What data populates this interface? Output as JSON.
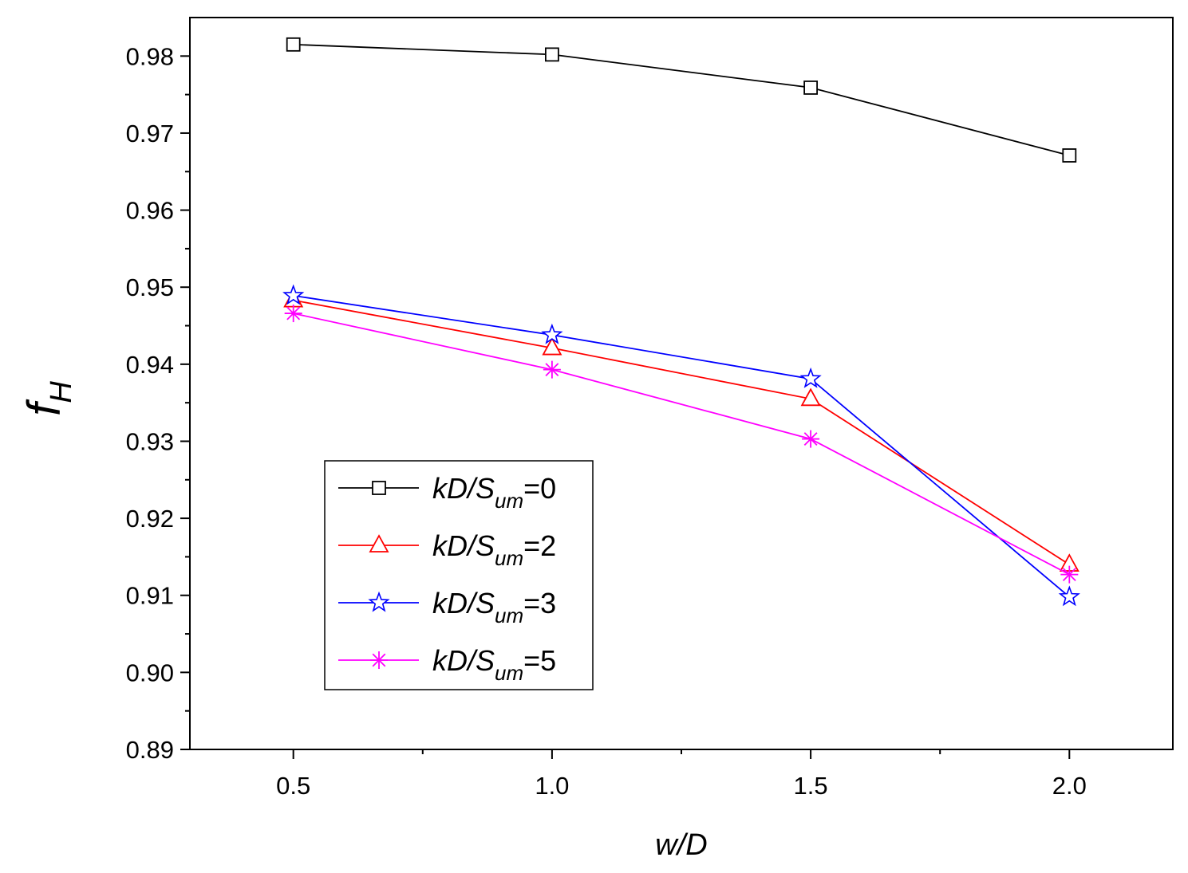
{
  "chart_data": {
    "type": "line",
    "title": "",
    "xlabel": "w/D",
    "ylabel_main": "f",
    "ylabel_sub": "H",
    "xlim": [
      0.3,
      2.2
    ],
    "ylim": [
      0.89,
      0.985
    ],
    "x": [
      0.5,
      1.0,
      1.5,
      2.0
    ],
    "xticks": [
      "0.5",
      "1.0",
      "1.5",
      "2.0"
    ],
    "yticks": [
      "0.89",
      "0.90",
      "0.91",
      "0.92",
      "0.93",
      "0.94",
      "0.95",
      "0.96",
      "0.97",
      "0.98"
    ],
    "legend_position": "lower-left",
    "series": [
      {
        "name": "kD/Sum=0",
        "label_main": "kD/S",
        "label_sub": "um",
        "label_tail": "=0",
        "color": "#000000",
        "marker": "square",
        "values": [
          0.9815,
          0.9802,
          0.9759,
          0.9671
        ]
      },
      {
        "name": "kD/Sum=2",
        "label_main": "kD/S",
        "label_sub": "um",
        "label_tail": "=2",
        "color": "#ff0000",
        "marker": "triangle",
        "values": [
          0.9483,
          0.9421,
          0.9355,
          0.914
        ]
      },
      {
        "name": "kD/Sum=3",
        "label_main": "kD/S",
        "label_sub": "um",
        "label_tail": "=3",
        "color": "#0000ff",
        "marker": "star",
        "values": [
          0.9489,
          0.9438,
          0.9381,
          0.9098
        ]
      },
      {
        "name": "kD/Sum=5",
        "label_main": "kD/S",
        "label_sub": "um",
        "label_tail": "=5",
        "color": "#ff00ff",
        "marker": "asterisk",
        "values": [
          0.9466,
          0.9393,
          0.9303,
          0.9127
        ]
      }
    ]
  }
}
